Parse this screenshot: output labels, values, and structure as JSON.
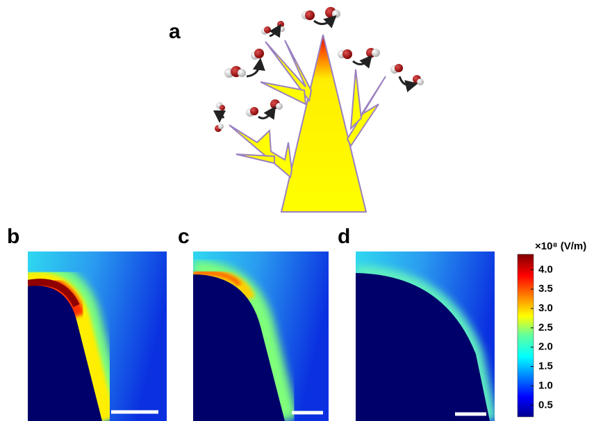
{
  "panels": {
    "a": "a",
    "b": "b",
    "c": "c",
    "d": "d"
  },
  "colorbar": {
    "unit": "×10⁸ (V/m)",
    "range": [
      0.2,
      4.4
    ],
    "ticks": [
      {
        "value": 4,
        "label": "4.0"
      },
      {
        "value": 3.5,
        "label": "3.5"
      },
      {
        "value": 3,
        "label": "3.0"
      },
      {
        "value": 2.5,
        "label": "2.5"
      },
      {
        "value": 2,
        "label": "2.0"
      },
      {
        "value": 1.5,
        "label": "1.5"
      },
      {
        "value": 1,
        "label": "1.0"
      },
      {
        "value": 0.5,
        "label": "0.5"
      }
    ]
  }
}
